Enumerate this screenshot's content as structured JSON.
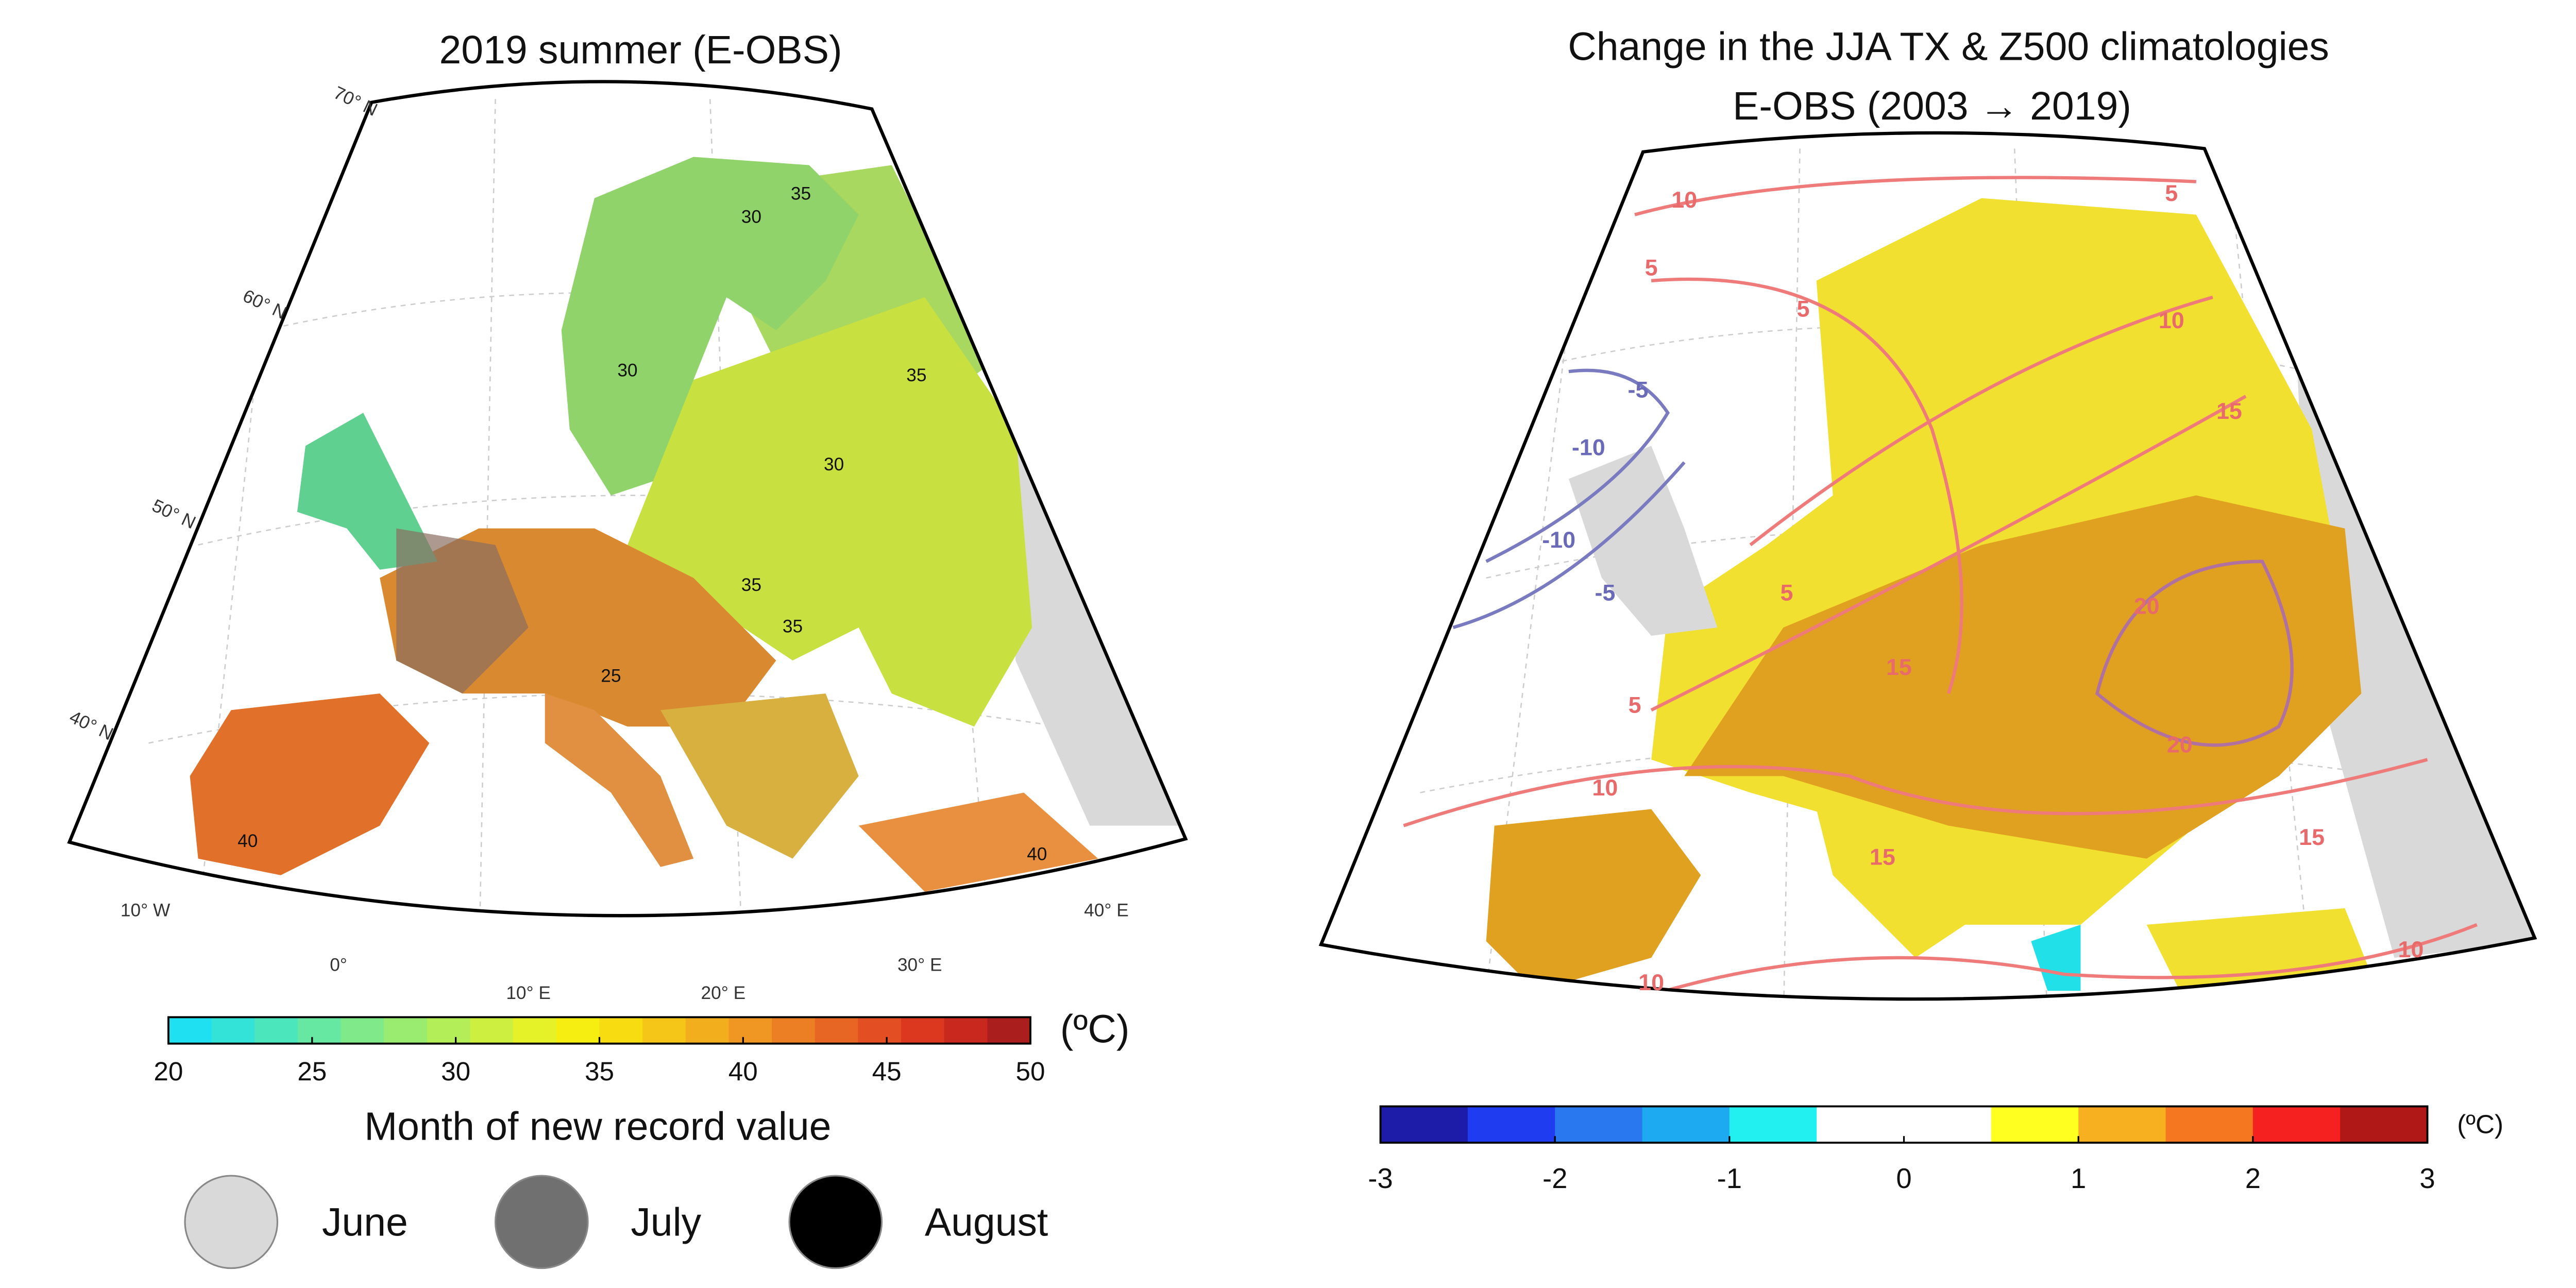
{
  "left": {
    "title": "2019 summer (E-OBS)",
    "colorbar": {
      "ticks": [
        20,
        25,
        30,
        35,
        40,
        45,
        50
      ],
      "unit": "(ºC)",
      "colors": [
        "#1ee0f0",
        "#33e3d8",
        "#4ce6bd",
        "#66e8a3",
        "#80ea8a",
        "#99ec70",
        "#b3ee58",
        "#cdf040",
        "#e6f228",
        "#f5ee10",
        "#f6dc10",
        "#f5c518",
        "#f3ae1e",
        "#f09622",
        "#ec7e24",
        "#e86624",
        "#e34e22",
        "#dc3820",
        "#c8281e",
        "#aa1e1e"
      ]
    },
    "legend": {
      "title": "Month of new record value",
      "entries": [
        {
          "label": "June",
          "color": "#d9d9d9"
        },
        {
          "label": "July",
          "color": "#707070"
        },
        {
          "label": "August",
          "color": "#000000"
        }
      ]
    },
    "lat_labels": [
      "70° N",
      "60° N",
      "50° N",
      "40° N"
    ],
    "lon_labels": [
      "10° W",
      "0°",
      "10° E",
      "20° E",
      "30° E",
      "40° E"
    ],
    "contour_labels": [
      "30",
      "35",
      "30",
      "35",
      "35",
      "30",
      "25",
      "35",
      "40",
      "40"
    ]
  },
  "right": {
    "title": [
      "Change in the JJA TX & Z500 climatologies",
      "E-OBS (2003 → 2019)"
    ],
    "colorbar": {
      "ticks": [
        -3,
        -2,
        -1,
        0,
        1,
        2,
        3
      ],
      "unit": "(ºC)",
      "colors": [
        "#1c1ca8",
        "#1f3cf0",
        "#2a78f0",
        "#1eaaf0",
        "#22f0f0",
        "#ffffff",
        "#ffffff",
        "#ffff20",
        "#f6b020",
        "#f57820",
        "#f52020",
        "#b01818"
      ]
    },
    "contour_labels": [
      "10",
      "5",
      "5",
      "5",
      "10",
      "15",
      "-5",
      "-10",
      "-10",
      "-5",
      "5",
      "15",
      "20",
      "20",
      "5",
      "10",
      "15",
      "15",
      "10",
      "10"
    ]
  }
}
